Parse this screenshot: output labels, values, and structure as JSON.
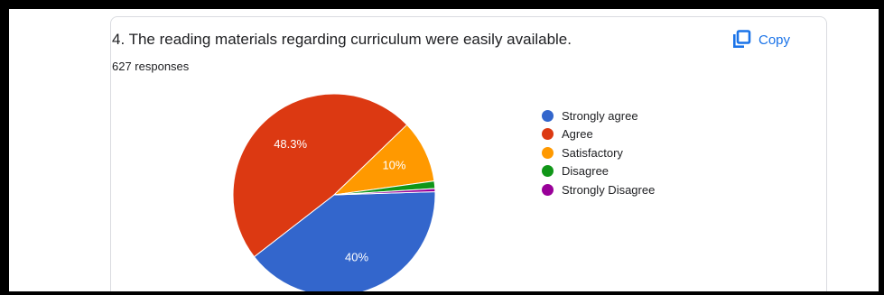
{
  "card": {
    "question": "4. The reading materials regarding curriculum were easily available.",
    "responses": "627 responses",
    "copy_label": "Copy",
    "copy_icon": "copy-icon"
  },
  "colors": {
    "accent": "#1a73e8",
    "background": "#000000"
  },
  "chart_data": {
    "type": "pie",
    "title": "4. The reading materials regarding curriculum were easily available.",
    "total_responses": 627,
    "slices": [
      {
        "label": "Strongly agree",
        "value": 40.0,
        "display": "40%",
        "color": "#3366cc"
      },
      {
        "label": "Agree",
        "value": 48.3,
        "display": "48.3%",
        "color": "#dc3912"
      },
      {
        "label": "Satisfactory",
        "value": 10.0,
        "display": "10%",
        "color": "#ff9900"
      },
      {
        "label": "Disagree",
        "value": 1.2,
        "display": "",
        "color": "#109618"
      },
      {
        "label": "Strongly Disagree",
        "value": 0.5,
        "display": "",
        "color": "#990099"
      }
    ],
    "legend_position": "right"
  }
}
